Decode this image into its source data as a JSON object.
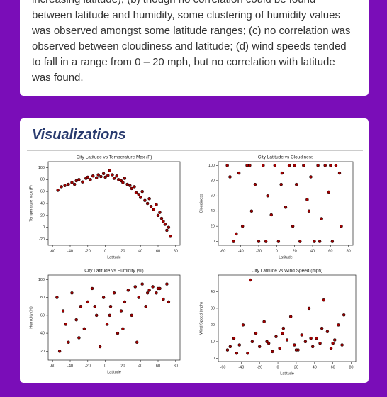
{
  "article": {
    "lines": [
      "increasing latitude), (b) though no correlation could be found",
      "between latitude and humidity, some clustering of humidity values",
      "was observed amongst some latitude ranges; (c) no correlation was",
      "observed between cloudiness and latitude; (d) wind speeds tended",
      "to fall in a range from 0 – 20 mph, but no correlation with latitude",
      "was found."
    ]
  },
  "section": {
    "heading": "Visualizations"
  },
  "chart_data": [
    {
      "type": "scatter",
      "title": "City Latitude vs Temperature Max (F)",
      "x_label": "Latitude",
      "y_label": "Temperature Max (F)",
      "color": "#a00000",
      "x": [
        -54,
        -50,
        -46,
        -42,
        -38,
        -35,
        -33,
        -30,
        -26,
        -22,
        -20,
        -17,
        -14,
        -10,
        -8,
        -5,
        -2,
        0,
        3,
        5,
        8,
        10,
        13,
        15,
        18,
        20,
        22,
        25,
        28,
        30,
        33,
        35,
        38,
        40,
        42,
        45,
        48,
        50,
        52,
        55,
        58,
        60,
        62,
        64,
        66,
        68,
        70,
        72,
        74
      ],
      "y": [
        62,
        68,
        70,
        72,
        75,
        72,
        78,
        80,
        76,
        82,
        84,
        80,
        86,
        83,
        88,
        85,
        90,
        84,
        87,
        95,
        88,
        82,
        86,
        80,
        78,
        75,
        82,
        72,
        70,
        65,
        68,
        58,
        55,
        50,
        60,
        45,
        40,
        48,
        35,
        30,
        38,
        20,
        25,
        15,
        10,
        5,
        -5,
        0,
        -15
      ],
      "xlim": [
        -65,
        85
      ],
      "ylim": [
        -30,
        110
      ],
      "xticks": [
        -60,
        -40,
        -20,
        0,
        20,
        40,
        60,
        80
      ],
      "yticks": [
        -20,
        0,
        20,
        40,
        60,
        80,
        100
      ]
    },
    {
      "type": "scatter",
      "title": "City Latitude vs Cloudiness",
      "x_label": "Latitude",
      "y_label": "Cloudiness",
      "color": "#a00000",
      "x": [
        -55,
        -48,
        -42,
        -38,
        -33,
        -28,
        -24,
        -20,
        -15,
        -10,
        -6,
        -2,
        2,
        6,
        10,
        14,
        18,
        22,
        26,
        30,
        34,
        38,
        42,
        46,
        50,
        54,
        58,
        62,
        66,
        70,
        -45,
        -30,
        -12,
        5,
        20,
        36,
        48,
        60,
        72,
        -52
      ],
      "y": [
        100,
        0,
        90,
        20,
        100,
        40,
        75,
        0,
        100,
        60,
        35,
        100,
        0,
        90,
        45,
        100,
        20,
        75,
        0,
        100,
        55,
        85,
        0,
        100,
        30,
        100,
        65,
        0,
        100,
        90,
        10,
        100,
        0,
        75,
        100,
        40,
        0,
        100,
        20,
        85
      ],
      "xlim": [
        -65,
        85
      ],
      "ylim": [
        -5,
        105
      ],
      "xticks": [
        -60,
        -40,
        -20,
        0,
        20,
        40,
        60,
        80
      ],
      "yticks": [
        0,
        20,
        40,
        60,
        80,
        100
      ]
    },
    {
      "type": "scatter",
      "title": "City Latitude vs Humidity (%)",
      "x_label": "Latitude",
      "y_label": "Humidity (%)",
      "color": "#a00000",
      "x": [
        -55,
        -48,
        -42,
        -38,
        -33,
        -28,
        -24,
        -20,
        -15,
        -10,
        -6,
        -2,
        2,
        6,
        10,
        14,
        18,
        22,
        26,
        30,
        34,
        38,
        42,
        46,
        50,
        54,
        58,
        62,
        66,
        70,
        -45,
        -30,
        -12,
        5,
        20,
        36,
        48,
        60,
        72,
        -52
      ],
      "y": [
        80,
        65,
        30,
        85,
        55,
        70,
        45,
        75,
        90,
        60,
        25,
        80,
        50,
        70,
        85,
        40,
        65,
        75,
        88,
        60,
        92,
        80,
        95,
        70,
        88,
        92,
        85,
        90,
        78,
        95,
        50,
        35,
        70,
        60,
        45,
        30,
        85,
        90,
        75,
        20
      ],
      "xlim": [
        -65,
        85
      ],
      "ylim": [
        10,
        105
      ],
      "xticks": [
        -60,
        -40,
        -20,
        0,
        20,
        40,
        60,
        80
      ],
      "yticks": [
        20,
        40,
        60,
        80,
        100
      ]
    },
    {
      "type": "scatter",
      "title": "City Latitude vs Wind Speed (mph)",
      "x_label": "Latitude",
      "y_label": "Wind Speed (mph)",
      "color": "#a00000",
      "x": [
        -55,
        -48,
        -42,
        -38,
        -33,
        -28,
        -24,
        -20,
        -15,
        -10,
        -6,
        -2,
        2,
        6,
        10,
        14,
        18,
        22,
        26,
        30,
        34,
        38,
        42,
        46,
        50,
        54,
        58,
        62,
        66,
        70,
        -45,
        -30,
        -12,
        5,
        20,
        36,
        48,
        60,
        72,
        -52
      ],
      "y": [
        5,
        12,
        8,
        20,
        3,
        10,
        15,
        7,
        22,
        9,
        4,
        13,
        6,
        18,
        11,
        25,
        8,
        5,
        14,
        10,
        30,
        7,
        12,
        9,
        35,
        16,
        6,
        11,
        20,
        8,
        3,
        47,
        10,
        15,
        5,
        12,
        18,
        9,
        26,
        7
      ],
      "xlim": [
        -65,
        85
      ],
      "ylim": [
        -2,
        50
      ],
      "xticks": [
        -60,
        -40,
        -20,
        0,
        20,
        40,
        60,
        80
      ],
      "yticks": [
        0,
        10,
        20,
        30,
        40
      ]
    }
  ]
}
